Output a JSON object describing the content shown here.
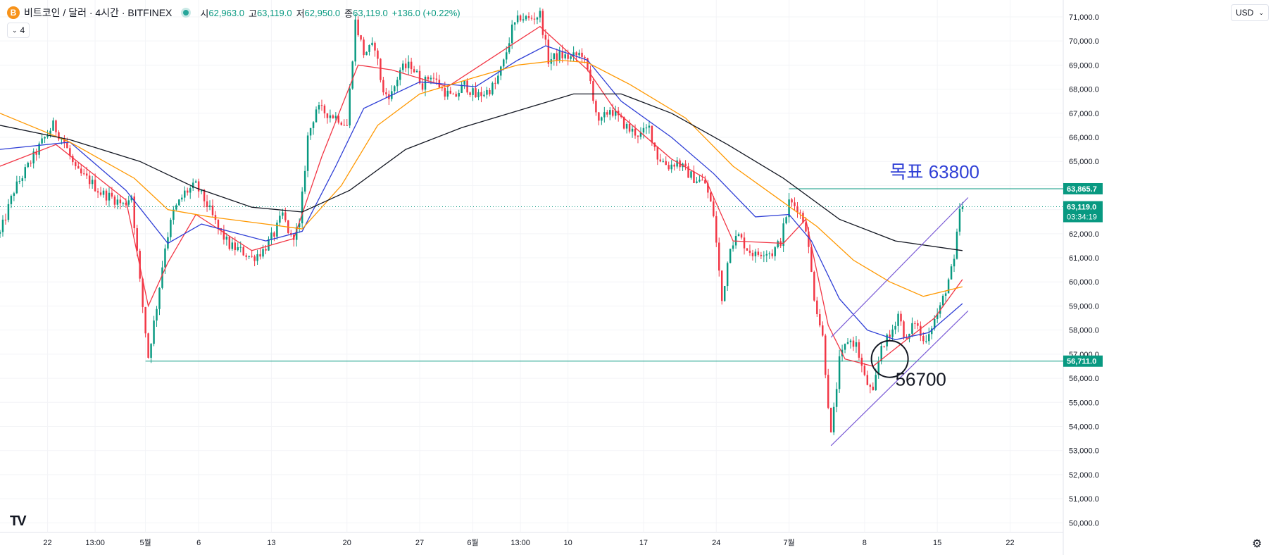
{
  "header": {
    "coin_icon": "B",
    "symbol": "비트코인 / 달러 · 4시간 · BITFINEX",
    "open_label": "시",
    "open_value": "62,963.0",
    "high_label": "고",
    "high_value": "63,119.0",
    "low_label": "저",
    "low_value": "62,950.0",
    "close_label": "종",
    "close_value": "63,119.0",
    "change": "+136.0 (+0.22%)"
  },
  "indicator_toggle": {
    "icon": "chevron-down-icon",
    "count": "4"
  },
  "currency_button": {
    "label": "USD",
    "icon": "chevron-down-icon"
  },
  "logo": "TV",
  "settings_icon": "gear-icon",
  "colors": {
    "up": "#089981",
    "down": "#f23645",
    "ema_short": "#f23645",
    "ema_mid": "#2f3fd6",
    "ema_long": "#ff9800",
    "sma_long": "#131722",
    "accent_line": "#089981",
    "channel": "#7b5cd6"
  },
  "chart_data": {
    "type": "candlestick",
    "symbol": "BTC/USD",
    "interval": "4h",
    "ylim": [
      49600,
      71700
    ],
    "y_ticks": [
      "71,000.0",
      "70,000.0",
      "69,000.0",
      "68,000.0",
      "67,000.0",
      "66,000.0",
      "65,000.0",
      "64,000.0",
      "63,000.0",
      "62,000.0",
      "61,000.0",
      "60,000.0",
      "59,000.0",
      "58,000.0",
      "57,000.0",
      "56,000.0",
      "55,000.0",
      "54,000.0",
      "53,000.0",
      "52,000.0",
      "51,000.0",
      "50,000.0"
    ],
    "x_ticks": [
      {
        "label": "22",
        "t": 17
      },
      {
        "label": "13:00",
        "t": 34
      },
      {
        "label": "5월",
        "t": 52
      },
      {
        "label": "6",
        "t": 71
      },
      {
        "label": "13",
        "t": 97
      },
      {
        "label": "20",
        "t": 124
      },
      {
        "label": "27",
        "t": 150
      },
      {
        "label": "6월",
        "t": 169
      },
      {
        "label": "13:00",
        "t": 186
      },
      {
        "label": "10",
        "t": 203
      },
      {
        "label": "17",
        "t": 230
      },
      {
        "label": "24",
        "t": 256
      },
      {
        "label": "7월",
        "t": 282
      },
      {
        "label": "8",
        "t": 309
      },
      {
        "label": "15",
        "t": 335
      },
      {
        "label": "22",
        "t": 361
      }
    ],
    "path_points": [
      [
        0,
        62000
      ],
      [
        5,
        63800
      ],
      [
        10,
        64800
      ],
      [
        15,
        65800
      ],
      [
        19,
        66500
      ],
      [
        23,
        65800
      ],
      [
        27,
        64600
      ],
      [
        32,
        64200
      ],
      [
        36,
        63700
      ],
      [
        40,
        63500
      ],
      [
        44,
        63200
      ],
      [
        47,
        63600
      ],
      [
        50,
        60000
      ],
      [
        53,
        56900
      ],
      [
        56,
        59000
      ],
      [
        59,
        61500
      ],
      [
        62,
        62900
      ],
      [
        66,
        63700
      ],
      [
        70,
        64000
      ],
      [
        74,
        63200
      ],
      [
        78,
        62200
      ],
      [
        82,
        61500
      ],
      [
        86,
        61300
      ],
      [
        90,
        61000
      ],
      [
        94,
        61300
      ],
      [
        98,
        62000
      ],
      [
        101,
        62800
      ],
      [
        104,
        61800
      ],
      [
        107,
        62300
      ],
      [
        110,
        66000
      ],
      [
        113,
        67200
      ],
      [
        117,
        67000
      ],
      [
        121,
        66800
      ],
      [
        124,
        66500
      ],
      [
        127,
        70800
      ],
      [
        130,
        69500
      ],
      [
        134,
        69800
      ],
      [
        137,
        67800
      ],
      [
        140,
        67800
      ],
      [
        143,
        68800
      ],
      [
        147,
        69000
      ],
      [
        151,
        68200
      ],
      [
        154,
        68600
      ],
      [
        158,
        68000
      ],
      [
        162,
        67600
      ],
      [
        166,
        68200
      ],
      [
        170,
        67700
      ],
      [
        174,
        67900
      ],
      [
        177,
        68200
      ],
      [
        180,
        69100
      ],
      [
        183,
        70500
      ],
      [
        186,
        71000
      ],
      [
        189,
        70900
      ],
      [
        193,
        71100
      ],
      [
        196,
        69200
      ],
      [
        200,
        69400
      ],
      [
        204,
        69300
      ],
      [
        208,
        69500
      ],
      [
        211,
        68300
      ],
      [
        214,
        66500
      ],
      [
        218,
        67200
      ],
      [
        221,
        66800
      ],
      [
        225,
        66300
      ],
      [
        229,
        66100
      ],
      [
        232,
        66400
      ],
      [
        235,
        65200
      ],
      [
        239,
        64800
      ],
      [
        242,
        65000
      ],
      [
        245,
        64600
      ],
      [
        248,
        64300
      ],
      [
        252,
        64100
      ],
      [
        255,
        62800
      ],
      [
        258,
        59200
      ],
      [
        261,
        61600
      ],
      [
        264,
        61900
      ],
      [
        267,
        61400
      ],
      [
        270,
        61100
      ],
      [
        273,
        61300
      ],
      [
        276,
        61200
      ],
      [
        279,
        61700
      ],
      [
        282,
        63300
      ],
      [
        285,
        63100
      ],
      [
        288,
        62300
      ],
      [
        291,
        59400
      ],
      [
        294,
        57700
      ],
      [
        297,
        53600
      ],
      [
        300,
        56700
      ],
      [
        303,
        57600
      ],
      [
        306,
        57400
      ],
      [
        309,
        56000
      ],
      [
        312,
        55300
      ],
      [
        315,
        57400
      ],
      [
        318,
        57700
      ],
      [
        321,
        58700
      ],
      [
        324,
        57500
      ],
      [
        327,
        58400
      ],
      [
        330,
        57500
      ],
      [
        333,
        58200
      ],
      [
        336,
        58900
      ],
      [
        339,
        60100
      ],
      [
        341,
        60800
      ],
      [
        343,
        63000
      ],
      [
        344,
        63119
      ]
    ],
    "moving_averages": [
      {
        "name": "EMA short",
        "color": "#f23645",
        "points": [
          [
            0,
            64800
          ],
          [
            20,
            65700
          ],
          [
            45,
            63400
          ],
          [
            53,
            59000
          ],
          [
            60,
            60800
          ],
          [
            70,
            62800
          ],
          [
            90,
            61300
          ],
          [
            105,
            61800
          ],
          [
            115,
            65200
          ],
          [
            128,
            69000
          ],
          [
            140,
            68800
          ],
          [
            160,
            68100
          ],
          [
            185,
            70000
          ],
          [
            193,
            70600
          ],
          [
            210,
            68800
          ],
          [
            220,
            67100
          ],
          [
            240,
            65100
          ],
          [
            252,
            64300
          ],
          [
            262,
            61700
          ],
          [
            280,
            61600
          ],
          [
            288,
            62600
          ],
          [
            296,
            58200
          ],
          [
            302,
            56800
          ],
          [
            312,
            56500
          ],
          [
            324,
            57600
          ],
          [
            334,
            58500
          ],
          [
            344,
            60100
          ]
        ]
      },
      {
        "name": "EMA mid",
        "color": "#2f3fd6",
        "points": [
          [
            0,
            65500
          ],
          [
            25,
            65800
          ],
          [
            45,
            63800
          ],
          [
            60,
            61600
          ],
          [
            72,
            62400
          ],
          [
            95,
            61700
          ],
          [
            108,
            62100
          ],
          [
            120,
            64800
          ],
          [
            130,
            67200
          ],
          [
            150,
            68300
          ],
          [
            170,
            68100
          ],
          [
            185,
            69200
          ],
          [
            195,
            69800
          ],
          [
            210,
            69200
          ],
          [
            222,
            67500
          ],
          [
            240,
            66000
          ],
          [
            255,
            64500
          ],
          [
            270,
            62700
          ],
          [
            282,
            62800
          ],
          [
            290,
            61700
          ],
          [
            300,
            59300
          ],
          [
            310,
            58000
          ],
          [
            320,
            57600
          ],
          [
            332,
            57900
          ],
          [
            344,
            59100
          ]
        ]
      },
      {
        "name": "EMA long",
        "color": "#ff9800",
        "points": [
          [
            0,
            67000
          ],
          [
            25,
            65800
          ],
          [
            48,
            64300
          ],
          [
            60,
            63000
          ],
          [
            75,
            62700
          ],
          [
            95,
            62400
          ],
          [
            108,
            62200
          ],
          [
            122,
            64000
          ],
          [
            135,
            66500
          ],
          [
            150,
            67800
          ],
          [
            170,
            68500
          ],
          [
            185,
            69000
          ],
          [
            200,
            69200
          ],
          [
            210,
            69100
          ],
          [
            225,
            68200
          ],
          [
            245,
            66800
          ],
          [
            262,
            64800
          ],
          [
            280,
            63300
          ],
          [
            292,
            62300
          ],
          [
            305,
            60900
          ],
          [
            318,
            60000
          ],
          [
            330,
            59400
          ],
          [
            344,
            59800
          ]
        ]
      },
      {
        "name": "SMA long",
        "color": "#131722",
        "points": [
          [
            0,
            66500
          ],
          [
            25,
            65900
          ],
          [
            50,
            65000
          ],
          [
            70,
            63900
          ],
          [
            90,
            63100
          ],
          [
            108,
            62900
          ],
          [
            125,
            63800
          ],
          [
            145,
            65500
          ],
          [
            165,
            66400
          ],
          [
            185,
            67100
          ],
          [
            205,
            67800
          ],
          [
            222,
            67800
          ],
          [
            240,
            67000
          ],
          [
            260,
            65700
          ],
          [
            280,
            64300
          ],
          [
            300,
            62600
          ],
          [
            320,
            61700
          ],
          [
            344,
            61300
          ]
        ]
      }
    ],
    "horizontal_lines": [
      {
        "price": 63865.7,
        "label": "63,865.7",
        "t_start": 282
      },
      {
        "price": 56711.0,
        "label": "56,711.0",
        "t_start": 52
      }
    ],
    "current_price": {
      "label": "63,119.0",
      "countdown": "03:34:19",
      "price": 63119
    },
    "channel_lines": [
      {
        "from": [
          297,
          57700
        ],
        "to": [
          346,
          63500
        ]
      },
      {
        "from": [
          297,
          53200
        ],
        "to": [
          346,
          58800
        ]
      }
    ],
    "annotations": [
      {
        "text": "목표 63800",
        "t": 318,
        "price": 64300,
        "color": "#2f3fd6"
      },
      {
        "text": "56700",
        "t": 320,
        "price": 55700,
        "color": "#131722"
      }
    ],
    "circle_marker": {
      "t": 318,
      "price": 56800
    },
    "grid": true,
    "legend": "none"
  }
}
